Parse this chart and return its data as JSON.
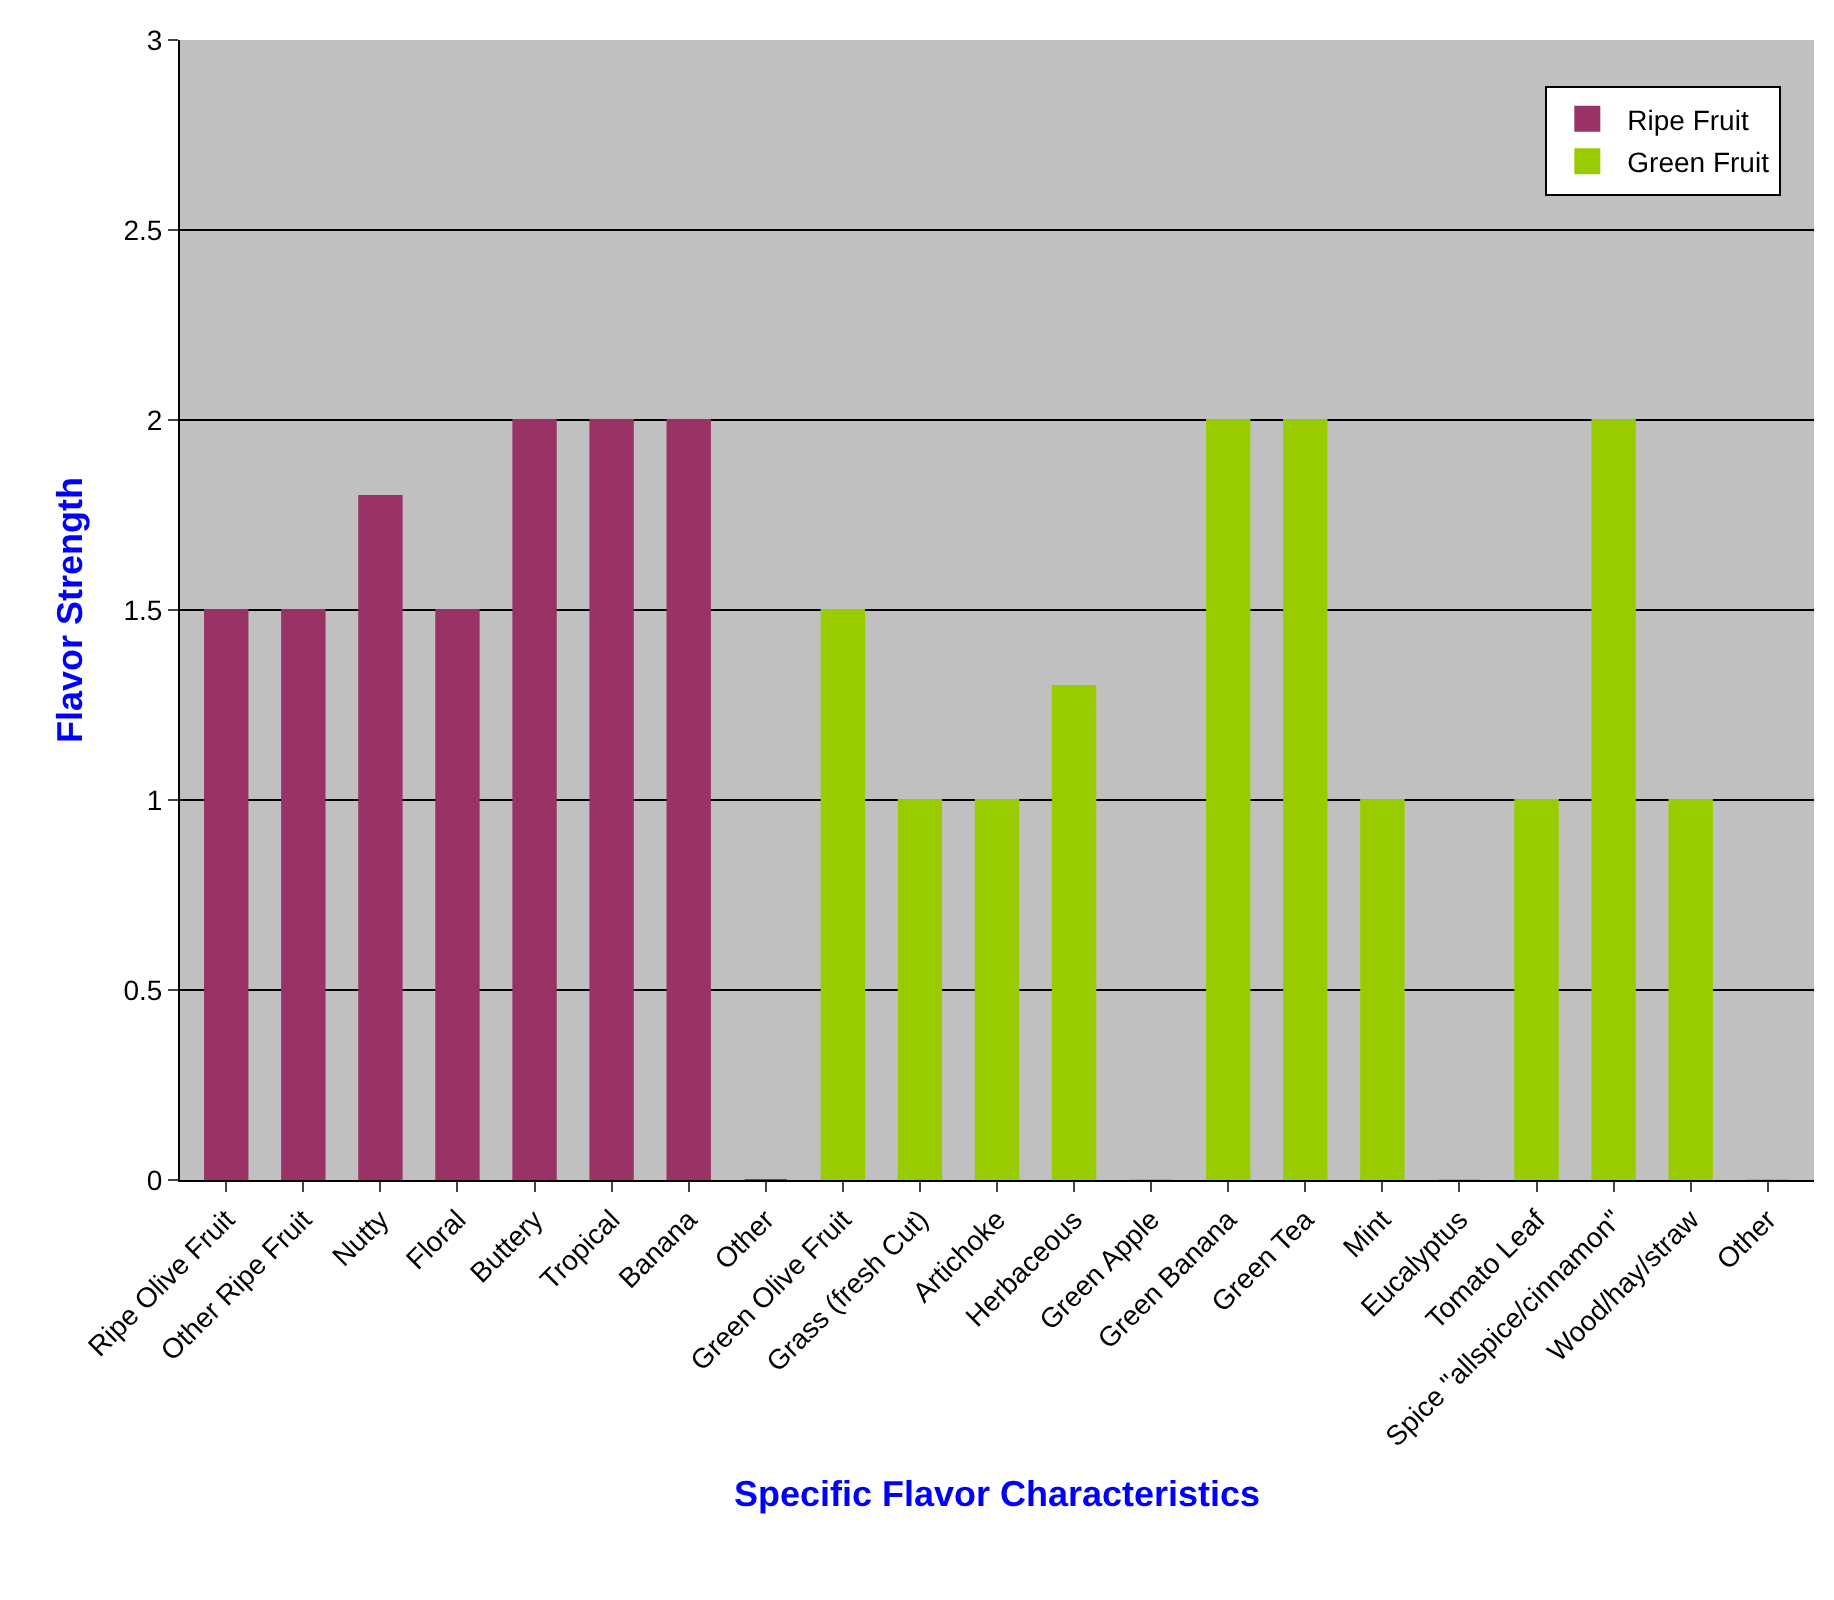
{
  "chart_data": {
    "type": "bar",
    "xlabel": "Specific Flavor Characteristics",
    "ylabel": "Flavor Strength",
    "categories": [
      "Ripe Olive Fruit",
      "Other Ripe Fruit",
      "Nutty",
      "Floral",
      "Buttery",
      "Tropical",
      "Banana",
      "Other",
      "Green Olive Fruit",
      "Grass (fresh Cut)",
      "Artichoke",
      "Herbaceous",
      "Green Apple",
      "Green Banana",
      "Green Tea",
      "Mint",
      "Eucalyptus",
      "Tomato Leaf",
      "Spice \"allspice/cinnamon\"",
      "Wood/hay/straw",
      "Other"
    ],
    "series": [
      {
        "name": "Ripe Fruit",
        "color": "#993366",
        "values": [
          1.5,
          1.5,
          1.8,
          1.5,
          2,
          2,
          2,
          0,
          null,
          null,
          null,
          null,
          null,
          null,
          null,
          null,
          null,
          null,
          null,
          null,
          null
        ]
      },
      {
        "name": "Green Fruit",
        "color": "#99cc00",
        "values": [
          null,
          null,
          null,
          null,
          null,
          null,
          null,
          null,
          1.5,
          1,
          1,
          1.3,
          0,
          2,
          2,
          1,
          0,
          1,
          2,
          1,
          0
        ]
      }
    ],
    "ylim": [
      0,
      3
    ],
    "yticks": [
      0,
      0.5,
      1,
      1.5,
      2,
      2.5,
      3
    ],
    "grid": "y",
    "legend": "top right"
  }
}
